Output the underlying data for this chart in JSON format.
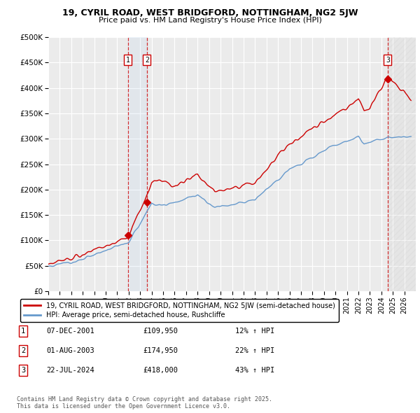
{
  "title_line1": "19, CYRIL ROAD, WEST BRIDGFORD, NOTTINGHAM, NG2 5JW",
  "title_line2": "Price paid vs. HM Land Registry's House Price Index (HPI)",
  "ylim": [
    0,
    500000
  ],
  "yticks": [
    0,
    50000,
    100000,
    150000,
    200000,
    250000,
    300000,
    350000,
    400000,
    450000,
    500000
  ],
  "ytick_labels": [
    "£0",
    "£50K",
    "£100K",
    "£150K",
    "£200K",
    "£250K",
    "£300K",
    "£350K",
    "£400K",
    "£450K",
    "£500K"
  ],
  "background_color": "#ffffff",
  "plot_bg_color": "#ebebeb",
  "grid_color": "#ffffff",
  "red_line_color": "#cc0000",
  "blue_line_color": "#6699cc",
  "sale_marker_color": "#cc0000",
  "legend_label_red": "19, CYRIL ROAD, WEST BRIDGFORD, NOTTINGHAM, NG2 5JW (semi-detached house)",
  "legend_label_blue": "HPI: Average price, semi-detached house, Rushcliffe",
  "transactions": [
    {
      "label": "1",
      "date": "07-DEC-2001",
      "price": 109950,
      "pct": "12%",
      "x_year": 2001.93
    },
    {
      "label": "2",
      "date": "01-AUG-2003",
      "price": 174950,
      "pct": "22%",
      "x_year": 2003.58
    },
    {
      "label": "3",
      "date": "22-JUL-2024",
      "price": 418000,
      "pct": "43%",
      "x_year": 2024.55
    }
  ],
  "table_rows": [
    [
      "1",
      "07-DEC-2001",
      "£109,950",
      "12% ↑ HPI"
    ],
    [
      "2",
      "01-AUG-2003",
      "£174,950",
      "22% ↑ HPI"
    ],
    [
      "3",
      "22-JUL-2024",
      "£418,000",
      "43% ↑ HPI"
    ]
  ],
  "footer": "Contains HM Land Registry data © Crown copyright and database right 2025.\nThis data is licensed under the Open Government Licence v3.0.",
  "xmin": 1995,
  "xmax": 2027,
  "hatch_start": 2024.55,
  "span_start": 2001.93,
  "span_end": 2003.58
}
